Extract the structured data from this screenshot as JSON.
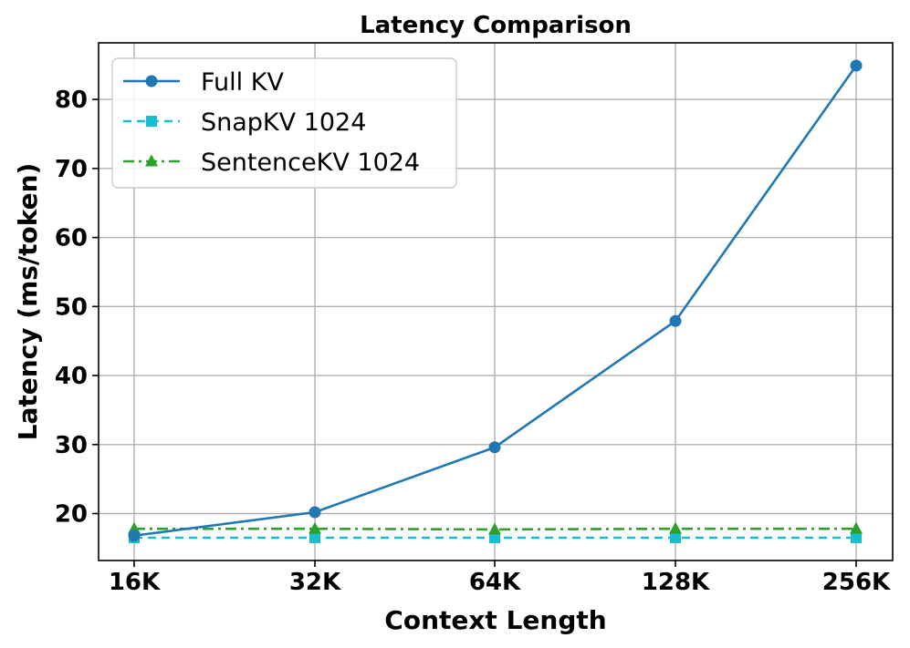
{
  "chart_data": {
    "type": "line",
    "title": "Latency Comparison",
    "xlabel": "Context Length",
    "ylabel": "Latency (ms/token)",
    "categories": [
      "16K",
      "32K",
      "64K",
      "128K",
      "256K"
    ],
    "ylim": [
      13.2,
      88.2
    ],
    "yticks": [
      20,
      30,
      40,
      50,
      60,
      70,
      80
    ],
    "grid": true,
    "legend_position": "top-left",
    "series": [
      {
        "name": "Full KV",
        "values": [
          16.8,
          20.2,
          29.6,
          47.9,
          84.9
        ],
        "color": "#1f77b4",
        "linestyle": "solid",
        "marker": "circle"
      },
      {
        "name": "SnapKV 1024",
        "values": [
          16.5,
          16.5,
          16.5,
          16.5,
          16.5
        ],
        "color": "#17becf",
        "linestyle": "dashed",
        "marker": "square"
      },
      {
        "name": "SentenceKV 1024",
        "values": [
          17.8,
          17.8,
          17.7,
          17.8,
          17.8
        ],
        "color": "#2ca02c",
        "linestyle": "dashdot",
        "marker": "triangle"
      }
    ]
  }
}
